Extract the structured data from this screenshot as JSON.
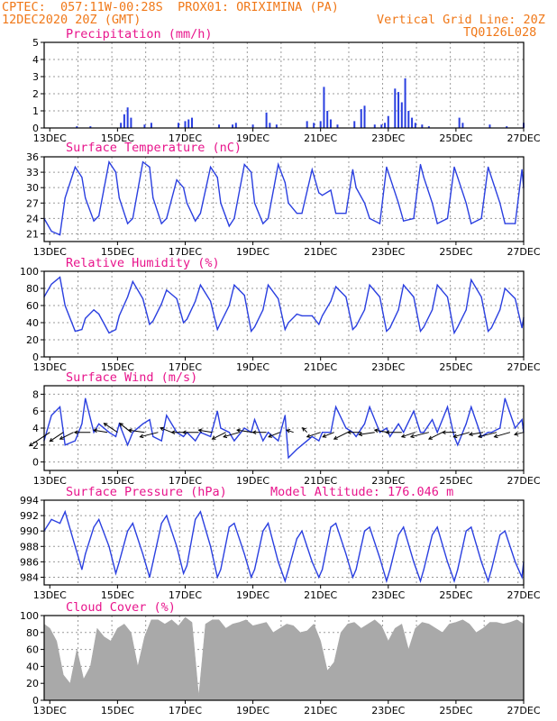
{
  "header": {
    "line1_left": "CPTEC:  057:11W-00:28S  PROX01: ORIXIMINA (PA)",
    "line2_left": "12DEC2020 20Z (GMT)",
    "line2_right": "Vertical Grid Line: 20Z",
    "line3_right": "TQ0126L028"
  },
  "colors": {
    "header": "#f07818",
    "title": "#e8158c",
    "series": "#2a3fe0",
    "cloud": "#a9a9a9",
    "grid": "#9a9a9a"
  },
  "x_axis": {
    "day_start": 12.833,
    "day_end": 27.0,
    "ticks": [
      {
        "day": 13,
        "label": "13DEC"
      },
      {
        "day": 15,
        "label": "15DEC"
      },
      {
        "day": 17,
        "label": "17DEC"
      },
      {
        "day": 19,
        "label": "19DEC"
      },
      {
        "day": 21,
        "label": "21DEC"
      },
      {
        "day": 23,
        "label": "23DEC"
      },
      {
        "day": 25,
        "label": "25DEC"
      },
      {
        "day": 27,
        "label": "27DEC"
      }
    ]
  },
  "chart_data": [
    {
      "id": "precip",
      "type": "bar",
      "title": "Precipitation (mm/h)",
      "ylim": [
        0,
        5
      ],
      "yticks": [
        0,
        1,
        2,
        3,
        4,
        5
      ],
      "x": [
        13.8,
        14.2,
        15.1,
        15.2,
        15.3,
        15.4,
        15.8,
        16.0,
        16.8,
        17.0,
        17.1,
        17.2,
        18.0,
        18.4,
        18.5,
        19.0,
        19.4,
        19.5,
        19.7,
        20.6,
        20.8,
        21.0,
        21.1,
        21.2,
        21.3,
        21.5,
        22.0,
        22.2,
        22.3,
        22.6,
        22.8,
        22.9,
        23.0,
        23.2,
        23.3,
        23.4,
        23.5,
        23.6,
        23.7,
        23.8,
        24.0,
        24.2,
        25.1,
        25.2,
        26.0,
        26.5,
        27.0
      ],
      "values": [
        0.1,
        0.1,
        0.3,
        0.8,
        1.2,
        0.6,
        0.2,
        0.3,
        0.3,
        0.4,
        0.5,
        0.6,
        0.2,
        0.2,
        0.3,
        0.2,
        0.9,
        0.3,
        0.2,
        0.4,
        0.3,
        0.4,
        2.4,
        1.0,
        0.5,
        0.2,
        0.4,
        1.1,
        1.3,
        0.2,
        0.2,
        0.3,
        0.7,
        2.3,
        2.1,
        1.5,
        2.9,
        1.0,
        0.6,
        0.3,
        0.2,
        0.1,
        0.6,
        0.3,
        0.2,
        0.1,
        0.3
      ]
    },
    {
      "id": "temp",
      "type": "line",
      "title": "Surface Temperature (nC)",
      "ylim": [
        19.5,
        36
      ],
      "yticks": [
        21,
        24,
        27,
        30,
        33,
        36
      ],
      "x": [
        12.83,
        13.05,
        13.3,
        13.45,
        13.75,
        13.95,
        14.05,
        14.3,
        14.45,
        14.75,
        14.95,
        15.05,
        15.3,
        15.45,
        15.75,
        15.95,
        16.05,
        16.3,
        16.45,
        16.75,
        16.95,
        17.05,
        17.3,
        17.45,
        17.75,
        17.95,
        18.05,
        18.3,
        18.45,
        18.75,
        18.95,
        19.05,
        19.3,
        19.45,
        19.75,
        19.95,
        20.05,
        20.3,
        20.45,
        20.75,
        20.95,
        21.05,
        21.3,
        21.45,
        21.75,
        21.95,
        22.05,
        22.3,
        22.45,
        22.75,
        22.95,
        23.05,
        23.3,
        23.45,
        23.75,
        23.95,
        24.05,
        24.3,
        24.45,
        24.75,
        24.95,
        25.05,
        25.3,
        25.45,
        25.75,
        25.95,
        26.05,
        26.3,
        26.45,
        26.75,
        26.95,
        27.0
      ],
      "values": [
        24,
        21.5,
        20.8,
        28,
        34,
        32,
        28,
        23.5,
        24.5,
        35,
        33,
        28,
        23,
        24,
        35,
        34,
        28,
        23,
        24,
        31.5,
        30,
        27,
        23.5,
        25,
        34,
        32,
        27,
        22.5,
        24,
        34.5,
        33,
        27,
        23,
        24,
        34.5,
        31,
        27,
        25,
        25,
        33.5,
        29,
        28.5,
        29.5,
        25,
        25,
        33.5,
        30,
        27,
        24,
        23,
        34,
        32,
        27,
        23.5,
        24,
        34.5,
        32,
        27,
        23,
        24,
        34,
        32,
        27,
        23,
        24,
        34,
        32,
        27,
        23,
        23,
        33.5,
        30
      ]
    },
    {
      "id": "rh",
      "type": "line",
      "title": "Relative Humidity (%)",
      "ylim": [
        0,
        100
      ],
      "yticks": [
        0,
        20,
        40,
        60,
        80,
        100
      ],
      "x": [
        12.83,
        13.05,
        13.3,
        13.45,
        13.75,
        13.95,
        14.05,
        14.3,
        14.45,
        14.75,
        14.95,
        15.05,
        15.3,
        15.45,
        15.75,
        15.95,
        16.05,
        16.3,
        16.45,
        16.75,
        16.95,
        17.05,
        17.3,
        17.45,
        17.75,
        17.95,
        18.05,
        18.3,
        18.45,
        18.75,
        18.95,
        19.05,
        19.3,
        19.45,
        19.75,
        19.95,
        20.05,
        20.3,
        20.45,
        20.75,
        20.95,
        21.05,
        21.3,
        21.45,
        21.75,
        21.95,
        22.05,
        22.3,
        22.45,
        22.75,
        22.95,
        23.05,
        23.3,
        23.45,
        23.75,
        23.95,
        24.05,
        24.3,
        24.45,
        24.75,
        24.95,
        25.05,
        25.3,
        25.45,
        25.75,
        25.95,
        26.05,
        26.3,
        26.45,
        26.75,
        26.95,
        27.0
      ],
      "values": [
        70,
        85,
        93,
        60,
        30,
        32,
        45,
        55,
        50,
        28,
        32,
        48,
        70,
        88,
        68,
        38,
        42,
        62,
        78,
        68,
        40,
        44,
        65,
        84,
        65,
        32,
        40,
        60,
        84,
        72,
        30,
        35,
        55,
        84,
        68,
        32,
        40,
        50,
        48,
        48,
        38,
        48,
        65,
        82,
        70,
        32,
        36,
        55,
        84,
        70,
        30,
        34,
        55,
        84,
        70,
        30,
        35,
        55,
        84,
        70,
        28,
        35,
        55,
        90,
        70,
        30,
        34,
        55,
        80,
        68,
        34,
        46
      ]
    },
    {
      "id": "wind",
      "type": "line",
      "title": "Surface Wind (m/s)",
      "ylim": [
        -1,
        9
      ],
      "yticks": [
        0,
        2,
        4,
        6,
        8
      ],
      "x": [
        12.83,
        13.05,
        13.3,
        13.45,
        13.75,
        13.95,
        14.05,
        14.3,
        14.45,
        14.75,
        14.95,
        15.05,
        15.3,
        15.45,
        15.75,
        15.95,
        16.05,
        16.3,
        16.45,
        16.75,
        16.95,
        17.05,
        17.3,
        17.45,
        17.75,
        17.95,
        18.05,
        18.3,
        18.45,
        18.75,
        18.95,
        19.05,
        19.3,
        19.45,
        19.75,
        19.95,
        20.05,
        20.3,
        20.45,
        20.75,
        20.95,
        21.05,
        21.3,
        21.45,
        21.75,
        21.95,
        22.05,
        22.3,
        22.45,
        22.75,
        22.95,
        23.05,
        23.3,
        23.45,
        23.75,
        23.95,
        24.05,
        24.3,
        24.45,
        24.75,
        24.95,
        25.05,
        25.3,
        25.45,
        25.75,
        25.95,
        26.05,
        26.3,
        26.45,
        26.75,
        26.95,
        27.0
      ],
      "values": [
        2.5,
        5.5,
        6.5,
        2.0,
        2.5,
        4.5,
        7.5,
        3.5,
        4.5,
        3.5,
        3.0,
        4.5,
        2.0,
        3.5,
        4.5,
        5.0,
        3.0,
        2.5,
        5.5,
        3.5,
        3.0,
        3.5,
        2.5,
        3.5,
        3.0,
        6.0,
        4.0,
        3.5,
        2.5,
        4.0,
        3.5,
        5.0,
        2.5,
        3.5,
        2.5,
        5.5,
        0.5,
        1.5,
        2.0,
        3.0,
        2.5,
        3.5,
        3.5,
        6.5,
        4.0,
        3.5,
        3.0,
        4.5,
        6.5,
        3.5,
        4.0,
        3.0,
        4.5,
        3.5,
        6.0,
        3.5,
        3.5,
        5.0,
        3.5,
        6.5,
        3.0,
        2.0,
        4.5,
        6.5,
        3.0,
        3.5,
        3.5,
        4.0,
        7.5,
        4.0,
        5.0,
        3.5
      ],
      "arrows": {
        "x": [
          13.0,
          13.4,
          13.7,
          14.2,
          14.7,
          15.0,
          15.4,
          15.8,
          16.2,
          16.6,
          17.0,
          17.4,
          17.8,
          18.2,
          18.6,
          19.0,
          19.4,
          19.8,
          20.2,
          20.6,
          21.0,
          21.4,
          21.8,
          22.2,
          22.6,
          23.0,
          23.4,
          23.8,
          24.2,
          24.6,
          25.0,
          25.4,
          25.8,
          26.2,
          26.6,
          27.0
        ],
        "u": [
          -4.5,
          -3,
          -3,
          -3.5,
          -3,
          -3,
          -2.5,
          -3.5,
          -4,
          -2.5,
          -3,
          -3.5,
          -3,
          -3,
          -3.5,
          -3.5,
          -3,
          -2.5,
          -1.5,
          -1,
          -3,
          -2.5,
          -3,
          -3,
          -3.5,
          -3,
          -3.5,
          -3,
          -4,
          -3,
          -3,
          -3.5,
          -3,
          -4,
          -3.5,
          -2
        ],
        "v": [
          -3,
          -2,
          -1.5,
          0,
          0.5,
          2,
          2,
          0.5,
          -1,
          1,
          0,
          0,
          0.5,
          -1.5,
          -1,
          0.5,
          0,
          -1,
          0.5,
          1,
          -1,
          -1,
          -1.5,
          0,
          -0.5,
          0.5,
          0,
          -1,
          -1,
          -1.5,
          0,
          -1,
          -0.5,
          -1,
          -1,
          -0.5
        ]
      }
    },
    {
      "id": "pres",
      "type": "line",
      "title": "Surface Pressure (hPa)",
      "annotation": "Model Altitude: 176.046 m",
      "ylim": [
        983,
        994
      ],
      "yticks": [
        984,
        986,
        988,
        990,
        992,
        994
      ],
      "x": [
        12.83,
        13.05,
        13.3,
        13.45,
        13.75,
        13.95,
        14.05,
        14.3,
        14.45,
        14.75,
        14.95,
        15.05,
        15.3,
        15.45,
        15.75,
        15.95,
        16.05,
        16.3,
        16.45,
        16.75,
        16.95,
        17.05,
        17.3,
        17.45,
        17.75,
        17.95,
        18.05,
        18.3,
        18.45,
        18.75,
        18.95,
        19.05,
        19.3,
        19.45,
        19.75,
        19.95,
        20.05,
        20.3,
        20.45,
        20.75,
        20.95,
        21.05,
        21.3,
        21.45,
        21.75,
        21.95,
        22.05,
        22.3,
        22.45,
        22.75,
        22.95,
        23.05,
        23.3,
        23.45,
        23.75,
        23.95,
        24.05,
        24.3,
        24.45,
        24.75,
        24.95,
        25.05,
        25.3,
        25.45,
        25.75,
        25.95,
        26.05,
        26.3,
        26.45,
        26.75,
        26.95,
        27.0
      ],
      "values": [
        990,
        991.5,
        991,
        992.5,
        988,
        985,
        987,
        990.5,
        991.5,
        988,
        984.5,
        986,
        990,
        991,
        987,
        984,
        986,
        991,
        992,
        988,
        984.5,
        985.5,
        991.5,
        992.5,
        988,
        984,
        985,
        990.5,
        991,
        987,
        984,
        985,
        990,
        991,
        986,
        983.5,
        985,
        989,
        990,
        986,
        984,
        985,
        990.5,
        991,
        987,
        984,
        985,
        990,
        990.5,
        986.5,
        983.5,
        985,
        989.5,
        990.5,
        986,
        983.5,
        985,
        989.5,
        990.5,
        986,
        983.5,
        985,
        990,
        990.5,
        986,
        983.5,
        985,
        989.5,
        990,
        986,
        984,
        986
      ]
    },
    {
      "id": "cloud",
      "type": "area",
      "title": "Cloud Cover (%)",
      "ylim": [
        0,
        100
      ],
      "yticks": [
        0,
        20,
        40,
        60,
        80,
        100
      ],
      "x": [
        12.83,
        13.0,
        13.2,
        13.4,
        13.6,
        13.8,
        14.0,
        14.2,
        14.4,
        14.6,
        14.8,
        15.0,
        15.2,
        15.4,
        15.6,
        15.8,
        16.0,
        16.2,
        16.4,
        16.6,
        16.8,
        17.0,
        17.2,
        17.4,
        17.6,
        17.8,
        18.0,
        18.2,
        18.4,
        18.6,
        18.8,
        19.0,
        19.2,
        19.4,
        19.6,
        19.8,
        20.0,
        20.2,
        20.4,
        20.6,
        20.8,
        21.0,
        21.2,
        21.4,
        21.6,
        21.8,
        22.0,
        22.2,
        22.4,
        22.6,
        22.8,
        23.0,
        23.2,
        23.4,
        23.6,
        23.8,
        24.0,
        24.2,
        24.4,
        24.6,
        24.8,
        25.0,
        25.2,
        25.4,
        25.6,
        25.8,
        26.0,
        26.2,
        26.4,
        26.6,
        26.8,
        27.0
      ],
      "values": [
        90,
        85,
        70,
        30,
        20,
        60,
        25,
        40,
        85,
        75,
        70,
        85,
        90,
        80,
        40,
        75,
        95,
        95,
        90,
        95,
        88,
        98,
        92,
        5,
        90,
        95,
        95,
        85,
        90,
        92,
        95,
        88,
        90,
        92,
        80,
        85,
        90,
        88,
        80,
        82,
        90,
        70,
        35,
        45,
        80,
        90,
        92,
        85,
        90,
        95,
        88,
        70,
        85,
        90,
        60,
        85,
        92,
        90,
        85,
        80,
        90,
        92,
        95,
        90,
        80,
        85,
        92,
        92,
        90,
        92,
        95,
        90
      ]
    }
  ]
}
